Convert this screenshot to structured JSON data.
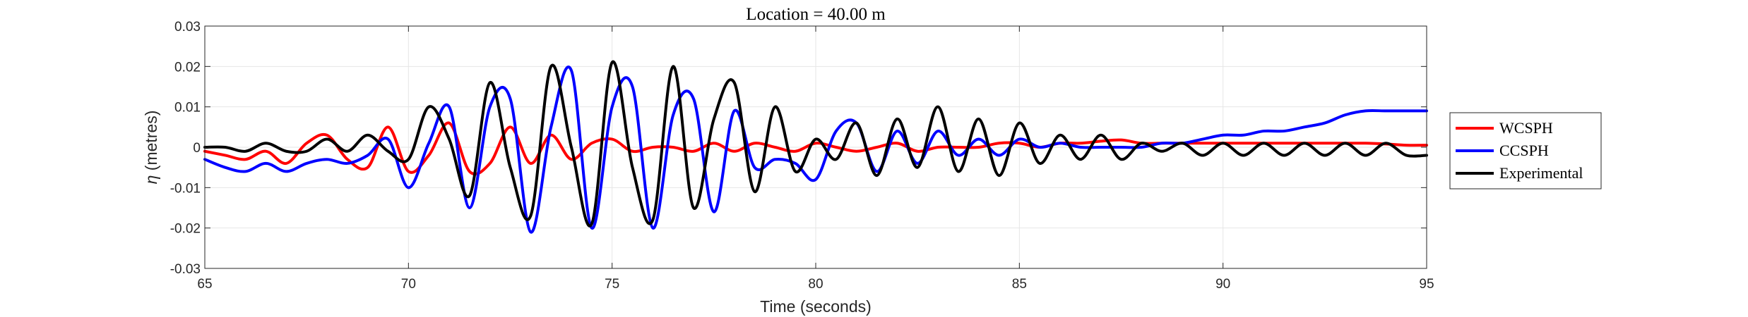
{
  "chart_data": {
    "type": "line",
    "title": "Location = 40.00 m",
    "xlabel": "Time (seconds)",
    "ylabel_symbol": "η",
    "ylabel": " (metres)",
    "xlim": [
      65,
      95
    ],
    "ylim": [
      -0.03,
      0.03
    ],
    "xticks": [
      65,
      70,
      75,
      80,
      85,
      90,
      95
    ],
    "xtick_labels": [
      "65",
      "70",
      "75",
      "80",
      "85",
      "90",
      "95"
    ],
    "yticks": [
      -0.03,
      -0.02,
      -0.01,
      0,
      0.01,
      0.02,
      0.03
    ],
    "ytick_labels": [
      "-0.03",
      "-0.02",
      "-0.01",
      "0",
      "0.01",
      "0.02",
      "0.03"
    ],
    "grid": true,
    "legend_position": "outside-right",
    "series": [
      {
        "name": "WCSPH",
        "color": "#ff0000",
        "x": [
          65,
          65.5,
          66,
          66.5,
          67,
          67.5,
          68,
          68.5,
          69,
          69.5,
          70,
          70.5,
          71,
          71.5,
          72,
          72.5,
          73,
          73.5,
          74,
          74.5,
          75,
          75.5,
          76,
          76.5,
          77,
          77.5,
          78,
          78.5,
          79,
          79.5,
          80,
          80.5,
          81,
          81.5,
          82,
          82.5,
          83,
          83.5,
          84,
          84.5,
          85,
          85.5,
          86,
          86.5,
          87,
          87.5,
          88,
          88.5,
          89,
          89.5,
          90,
          90.5,
          91,
          91.5,
          92,
          92.5,
          93,
          93.5,
          94,
          94.5,
          95
        ],
        "y": [
          -0.001,
          -0.002,
          -0.003,
          -0.001,
          -0.004,
          0.001,
          0.003,
          -0.003,
          -0.005,
          0.005,
          -0.006,
          -0.002,
          0.006,
          -0.006,
          -0.004,
          0.005,
          -0.004,
          0.003,
          -0.003,
          0.001,
          0.002,
          -0.001,
          0,
          0,
          -0.001,
          0.001,
          -0.001,
          0.001,
          0,
          -0.001,
          0.001,
          0,
          -0.001,
          0,
          0.001,
          -0.001,
          0,
          0,
          0,
          0.001,
          0.001,
          0,
          0.001,
          0.001,
          0.0015,
          0.0018,
          0.001,
          0.001,
          0.001,
          0.001,
          0.001,
          0.001,
          0.001,
          0.001,
          0.001,
          0.001,
          0.001,
          0.001,
          0.0008,
          0.0005,
          0.0005
        ]
      },
      {
        "name": "CCSPH",
        "color": "#0000ff",
        "x": [
          65,
          65.5,
          66,
          66.5,
          67,
          67.5,
          68,
          68.5,
          69,
          69.5,
          70,
          70.5,
          71,
          71.5,
          72,
          72.5,
          73,
          73.5,
          74,
          74.5,
          75,
          75.5,
          76,
          76.5,
          77,
          77.5,
          78,
          78.5,
          79,
          79.5,
          80,
          80.5,
          81,
          81.5,
          82,
          82.5,
          83,
          83.5,
          84,
          84.5,
          85,
          85.5,
          86,
          86.5,
          87,
          87.5,
          88,
          88.5,
          89,
          89.5,
          90,
          90.5,
          91,
          91.5,
          92,
          92.5,
          93,
          93.5,
          94,
          94.5,
          95
        ],
        "y": [
          -0.003,
          -0.005,
          -0.006,
          -0.004,
          -0.006,
          -0.004,
          -0.003,
          -0.004,
          -0.002,
          0.002,
          -0.01,
          0.001,
          0.01,
          -0.015,
          0.01,
          0.012,
          -0.021,
          0.005,
          0.019,
          -0.02,
          0.01,
          0.015,
          -0.02,
          0.008,
          0.012,
          -0.016,
          0.009,
          -0.005,
          -0.003,
          -0.004,
          -0.008,
          0.004,
          0.006,
          -0.006,
          0.004,
          -0.004,
          0.004,
          -0.002,
          0.002,
          -0.002,
          0.002,
          0,
          0.001,
          0,
          0,
          0,
          0,
          0.001,
          0.001,
          0.002,
          0.003,
          0.003,
          0.004,
          0.004,
          0.005,
          0.006,
          0.008,
          0.009,
          0.009,
          0.009,
          0.009
        ]
      },
      {
        "name": "Experimental",
        "color": "#000000",
        "x": [
          65,
          65.5,
          66,
          66.5,
          67,
          67.5,
          68,
          68.5,
          69,
          69.5,
          70,
          70.5,
          71,
          71.5,
          72,
          72.5,
          73,
          73.5,
          74,
          74.5,
          75,
          75.5,
          76,
          76.5,
          77,
          77.5,
          78,
          78.5,
          79,
          79.5,
          80,
          80.5,
          81,
          81.5,
          82,
          82.5,
          83,
          83.5,
          84,
          84.5,
          85,
          85.5,
          86,
          86.5,
          87,
          87.5,
          88,
          88.5,
          89,
          89.5,
          90,
          90.5,
          91,
          91.5,
          92,
          92.5,
          93,
          93.5,
          94,
          94.5,
          95
        ],
        "y": [
          0,
          0,
          -0.001,
          0.001,
          -0.001,
          -0.001,
          0.002,
          -0.001,
          0.003,
          -0.001,
          -0.003,
          0.01,
          0.002,
          -0.012,
          0.016,
          -0.005,
          -0.017,
          0.02,
          0,
          -0.019,
          0.021,
          -0.005,
          -0.018,
          0.02,
          -0.015,
          0.007,
          0.016,
          -0.011,
          0.01,
          -0.006,
          0.002,
          -0.003,
          0.006,
          -0.007,
          0.007,
          -0.005,
          0.01,
          -0.006,
          0.007,
          -0.007,
          0.006,
          -0.004,
          0.003,
          -0.003,
          0.003,
          -0.003,
          0.001,
          -0.001,
          0.001,
          -0.002,
          0.001,
          -0.002,
          0.001,
          -0.002,
          0.001,
          -0.002,
          0.001,
          -0.002,
          0.001,
          -0.002,
          -0.002
        ]
      }
    ]
  }
}
